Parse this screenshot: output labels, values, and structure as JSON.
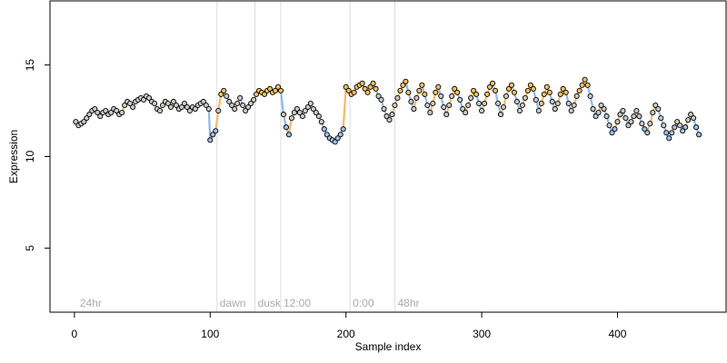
{
  "chart_data": {
    "type": "scatter",
    "xlabel": "Sample index",
    "ylabel": "Expression",
    "xlim": [
      -18,
      480
    ],
    "ylim": [
      1.5,
      18.5
    ],
    "x_ticks": [
      0,
      100,
      200,
      300,
      400
    ],
    "y_ticks": [
      5,
      10,
      15
    ],
    "grid": false,
    "phase_markers": [
      {
        "x": 2,
        "label": "24hr"
      },
      {
        "x": 105,
        "label": "dawn"
      },
      {
        "x": 133,
        "label": "dusk"
      },
      {
        "x": 152,
        "label": "12:00"
      },
      {
        "x": 203,
        "label": "0:00"
      },
      {
        "x": 236,
        "label": "48hr"
      }
    ],
    "segment_colors": {
      "up": "#f5b865",
      "down": "#8fb9e4",
      "flat": "#c8c8c8"
    },
    "point_fill_colors": {
      "high": "#f5c060",
      "mid": "#c8c8c8",
      "low": "#9ec3ea"
    },
    "series": [
      {
        "values": [
          [
            1,
            11.9
          ],
          [
            3,
            11.7
          ],
          [
            5,
            11.8
          ],
          [
            7,
            11.9
          ],
          [
            9,
            12.1
          ],
          [
            11,
            12.3
          ],
          [
            13,
            12.5
          ],
          [
            15,
            12.6
          ],
          [
            17,
            12.4
          ],
          [
            19,
            12.2
          ],
          [
            21,
            12.4
          ],
          [
            23,
            12.5
          ],
          [
            25,
            12.3
          ],
          [
            27,
            12.4
          ],
          [
            29,
            12.6
          ],
          [
            31,
            12.5
          ],
          [
            33,
            12.3
          ],
          [
            35,
            12.4
          ],
          [
            37,
            12.8
          ],
          [
            39,
            13.0
          ],
          [
            41,
            12.9
          ],
          [
            43,
            12.7
          ],
          [
            45,
            13.0
          ],
          [
            47,
            13.1
          ],
          [
            49,
            13.2
          ],
          [
            51,
            13.1
          ],
          [
            53,
            13.3
          ],
          [
            55,
            13.2
          ],
          [
            57,
            13.0
          ],
          [
            59,
            12.9
          ],
          [
            61,
            12.6
          ],
          [
            63,
            12.5
          ],
          [
            65,
            12.8
          ],
          [
            67,
            13.0
          ],
          [
            69,
            12.9
          ],
          [
            71,
            12.7
          ],
          [
            73,
            13.0
          ],
          [
            75,
            12.8
          ],
          [
            77,
            12.6
          ],
          [
            79,
            12.7
          ],
          [
            81,
            12.9
          ],
          [
            83,
            12.7
          ],
          [
            85,
            12.5
          ],
          [
            87,
            12.7
          ],
          [
            89,
            12.6
          ],
          [
            91,
            12.8
          ],
          [
            93,
            12.9
          ],
          [
            95,
            13.0
          ],
          [
            97,
            12.8
          ],
          [
            99,
            12.6
          ],
          [
            100,
            10.9
          ],
          [
            102,
            11.2
          ],
          [
            104,
            11.4
          ],
          [
            106,
            12.5
          ],
          [
            108,
            13.4
          ],
          [
            110,
            13.6
          ],
          [
            112,
            13.3
          ],
          [
            114,
            13.0
          ],
          [
            116,
            12.8
          ],
          [
            118,
            12.6
          ],
          [
            120,
            12.9
          ],
          [
            122,
            13.2
          ],
          [
            124,
            12.8
          ],
          [
            126,
            12.5
          ],
          [
            128,
            12.7
          ],
          [
            130,
            12.9
          ],
          [
            132,
            13.1
          ],
          [
            134,
            13.4
          ],
          [
            136,
            13.6
          ],
          [
            138,
            13.5
          ],
          [
            140,
            13.4
          ],
          [
            142,
            13.6
          ],
          [
            144,
            13.7
          ],
          [
            146,
            13.5
          ],
          [
            148,
            13.6
          ],
          [
            150,
            13.8
          ],
          [
            152,
            13.6
          ],
          [
            154,
            12.3
          ],
          [
            156,
            11.6
          ],
          [
            158,
            11.2
          ],
          [
            160,
            12.1
          ],
          [
            162,
            12.4
          ],
          [
            164,
            12.6
          ],
          [
            166,
            12.4
          ],
          [
            168,
            12.2
          ],
          [
            170,
            12.5
          ],
          [
            172,
            12.7
          ],
          [
            174,
            12.9
          ],
          [
            176,
            12.6
          ],
          [
            178,
            12.4
          ],
          [
            180,
            12.2
          ],
          [
            182,
            11.9
          ],
          [
            184,
            11.5
          ],
          [
            186,
            11.2
          ],
          [
            188,
            11.0
          ],
          [
            190,
            10.9
          ],
          [
            192,
            10.8
          ],
          [
            194,
            11.0
          ],
          [
            196,
            11.2
          ],
          [
            198,
            11.5
          ],
          [
            200,
            13.8
          ],
          [
            202,
            13.6
          ],
          [
            204,
            13.4
          ],
          [
            206,
            13.5
          ],
          [
            208,
            13.8
          ],
          [
            210,
            13.9
          ],
          [
            212,
            14.0
          ],
          [
            214,
            13.7
          ],
          [
            216,
            13.5
          ],
          [
            218,
            13.8
          ],
          [
            220,
            14.0
          ],
          [
            222,
            13.7
          ],
          [
            224,
            13.3
          ],
          [
            226,
            13.1
          ],
          [
            228,
            12.6
          ],
          [
            230,
            12.2
          ],
          [
            232,
            12.0
          ],
          [
            234,
            12.3
          ],
          [
            236,
            12.8
          ],
          [
            238,
            13.2
          ],
          [
            240,
            13.6
          ],
          [
            242,
            13.9
          ],
          [
            244,
            14.1
          ],
          [
            246,
            13.5
          ],
          [
            248,
            13.0
          ],
          [
            250,
            12.6
          ],
          [
            252,
            13.2
          ],
          [
            254,
            13.6
          ],
          [
            256,
            13.9
          ],
          [
            258,
            13.4
          ],
          [
            260,
            12.8
          ],
          [
            262,
            12.4
          ],
          [
            264,
            12.9
          ],
          [
            266,
            13.5
          ],
          [
            268,
            13.8
          ],
          [
            270,
            13.3
          ],
          [
            272,
            12.7
          ],
          [
            274,
            12.3
          ],
          [
            276,
            12.8
          ],
          [
            278,
            13.3
          ],
          [
            280,
            13.7
          ],
          [
            282,
            13.5
          ],
          [
            284,
            13.1
          ],
          [
            286,
            12.6
          ],
          [
            288,
            12.4
          ],
          [
            290,
            12.8
          ],
          [
            292,
            13.2
          ],
          [
            294,
            13.6
          ],
          [
            296,
            13.4
          ],
          [
            298,
            12.9
          ],
          [
            300,
            12.5
          ],
          [
            302,
            12.9
          ],
          [
            304,
            13.4
          ],
          [
            306,
            13.8
          ],
          [
            308,
            14.0
          ],
          [
            310,
            13.6
          ],
          [
            312,
            12.9
          ],
          [
            314,
            12.3
          ],
          [
            316,
            12.7
          ],
          [
            318,
            13.3
          ],
          [
            320,
            13.7
          ],
          [
            322,
            13.9
          ],
          [
            324,
            13.5
          ],
          [
            326,
            13.0
          ],
          [
            328,
            12.5
          ],
          [
            330,
            12.8
          ],
          [
            332,
            13.2
          ],
          [
            334,
            13.6
          ],
          [
            336,
            13.9
          ],
          [
            338,
            13.7
          ],
          [
            340,
            13.1
          ],
          [
            342,
            12.5
          ],
          [
            344,
            12.9
          ],
          [
            346,
            13.4
          ],
          [
            348,
            13.8
          ],
          [
            350,
            13.5
          ],
          [
            352,
            13.0
          ],
          [
            354,
            12.6
          ],
          [
            356,
            12.9
          ],
          [
            358,
            13.4
          ],
          [
            360,
            13.7
          ],
          [
            362,
            13.5
          ],
          [
            364,
            12.9
          ],
          [
            366,
            12.5
          ],
          [
            368,
            12.8
          ],
          [
            370,
            13.3
          ],
          [
            372,
            13.6
          ],
          [
            374,
            13.9
          ],
          [
            376,
            14.2
          ],
          [
            378,
            13.9
          ],
          [
            380,
            13.3
          ],
          [
            382,
            12.6
          ],
          [
            384,
            12.2
          ],
          [
            386,
            12.4
          ],
          [
            388,
            12.8
          ],
          [
            390,
            12.6
          ],
          [
            392,
            12.2
          ],
          [
            394,
            11.7
          ],
          [
            396,
            11.3
          ],
          [
            398,
            11.5
          ],
          [
            400,
            11.9
          ],
          [
            402,
            12.3
          ],
          [
            404,
            12.5
          ],
          [
            406,
            12.1
          ],
          [
            408,
            11.7
          ],
          [
            410,
            11.9
          ],
          [
            412,
            12.2
          ],
          [
            414,
            12.5
          ],
          [
            416,
            12.2
          ],
          [
            418,
            11.8
          ],
          [
            420,
            11.5
          ],
          [
            422,
            11.3
          ],
          [
            424,
            11.8
          ],
          [
            426,
            12.4
          ],
          [
            428,
            12.8
          ],
          [
            430,
            12.6
          ],
          [
            432,
            12.1
          ],
          [
            434,
            11.7
          ],
          [
            436,
            11.3
          ],
          [
            438,
            11.0
          ],
          [
            440,
            11.3
          ],
          [
            442,
            11.6
          ],
          [
            444,
            11.9
          ],
          [
            446,
            11.7
          ],
          [
            448,
            11.4
          ],
          [
            450,
            11.6
          ],
          [
            452,
            12.0
          ],
          [
            454,
            12.3
          ],
          [
            456,
            12.1
          ],
          [
            458,
            11.6
          ],
          [
            460,
            11.2
          ]
        ]
      }
    ]
  }
}
